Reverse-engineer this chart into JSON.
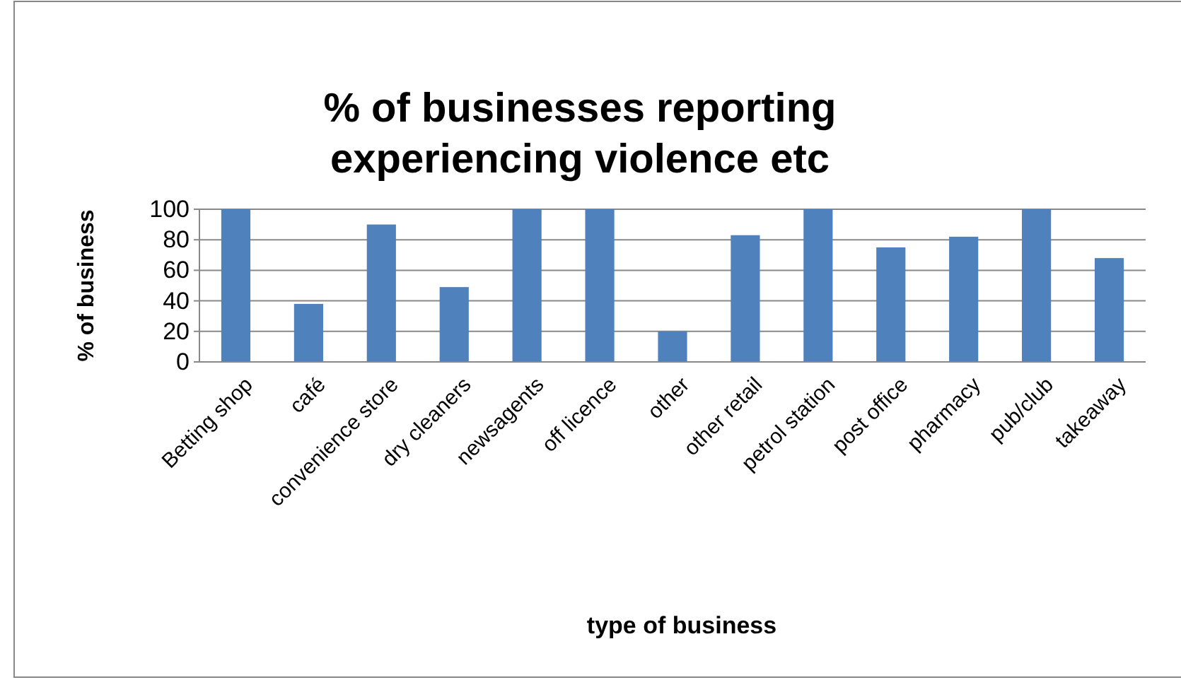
{
  "chart_data": {
    "type": "bar",
    "title": "% of businesses reporting experiencing violence etc",
    "xlabel": "type of business",
    "ylabel": "% of business",
    "categories": [
      "Betting shop",
      "café",
      "convenience store",
      "dry cleaners",
      "newsagents",
      "off licence",
      "other",
      "other retail",
      "petrol station",
      "post office",
      "pharmacy",
      "pub/club",
      "takeaway"
    ],
    "values": [
      100,
      38,
      90,
      49,
      100,
      100,
      20,
      83,
      100,
      75,
      82,
      100,
      68
    ],
    "color": "#4f81bd",
    "ylim": [
      0,
      100
    ],
    "yticks": [
      0,
      20,
      40,
      60,
      80,
      100
    ],
    "grid": "y"
  }
}
